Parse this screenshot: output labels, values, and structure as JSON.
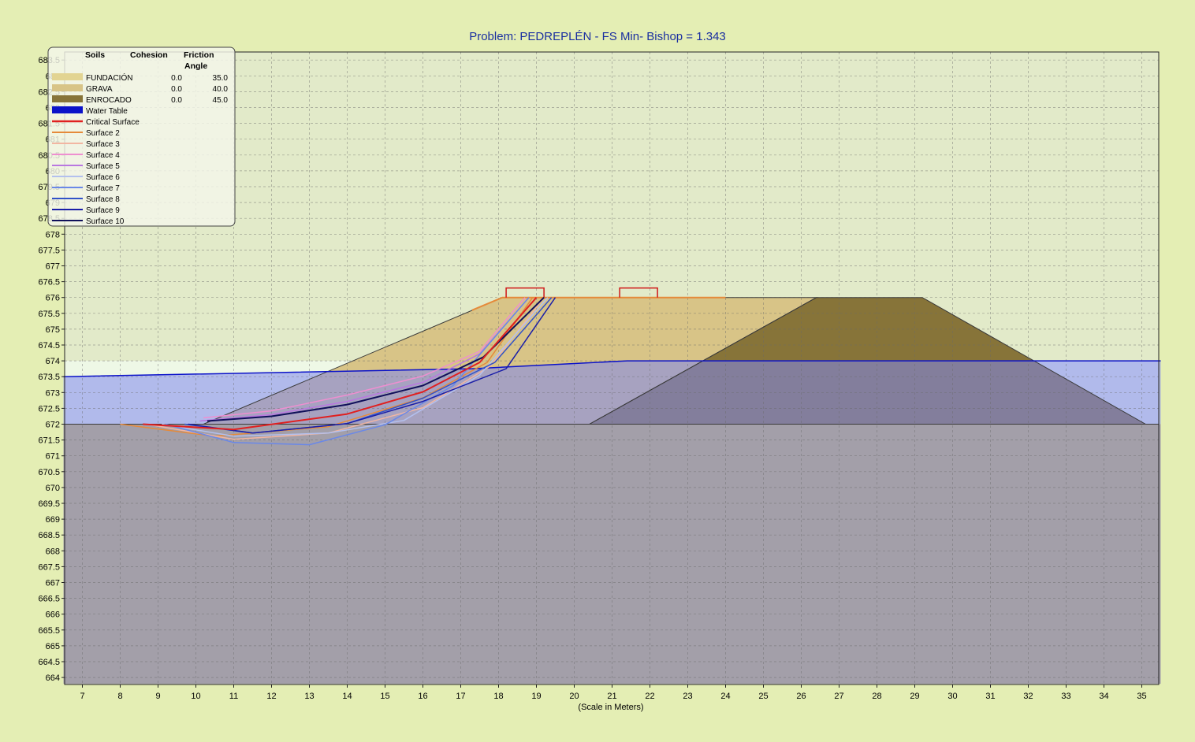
{
  "chart_data": {
    "type": "slope-stability-section",
    "title": "Problem: PEDREPLÉN - FS Min- Bishop = 1.343",
    "xlabel": "(Scale in Meters)",
    "ylabel": "",
    "xlim": [
      6.5,
      35.5
    ],
    "ylim": [
      663.8,
      683.8
    ],
    "x_ticks": [
      "7",
      "8",
      "9",
      "10",
      "11",
      "12",
      "13",
      "14",
      "15",
      "16",
      "17",
      "18",
      "19",
      "20",
      "21",
      "22",
      "23",
      "24",
      "25",
      "26",
      "27",
      "28",
      "29",
      "30",
      "31",
      "32",
      "33",
      "34",
      "35"
    ],
    "y_ticks": [
      "664",
      "664.5",
      "665",
      "665.5",
      "666",
      "666.5",
      "667",
      "667.5",
      "668",
      "668.5",
      "669",
      "669.5",
      "670",
      "670.5",
      "671",
      "671.5",
      "672",
      "672.5",
      "673",
      "673.5",
      "674",
      "674.5",
      "675",
      "675.5",
      "676",
      "676.5",
      "677",
      "677.5",
      "678",
      "678.5",
      "679",
      "679.5",
      "680",
      "680.5",
      "681",
      "681.5",
      "682",
      "682.5",
      "683",
      "683.5"
    ],
    "grid": true,
    "legend": {
      "placement": "top-left",
      "headers": [
        "Soils",
        "Cohesion",
        "Friction",
        "Angle"
      ],
      "soils": [
        {
          "name": "FUNDACIÓN",
          "cohesion": "0.0",
          "friction": "35.0",
          "color": "#e2d492"
        },
        {
          "name": "GRAVA",
          "cohesion": "0.0",
          "friction": "40.0",
          "color": "#d8c487"
        },
        {
          "name": "ENROCADO",
          "cohesion": "0.0",
          "friction": "45.0",
          "color": "#877439"
        }
      ],
      "lines": [
        {
          "name": "Water Table",
          "color": "#0b12c9"
        },
        {
          "name": "Critical Surface",
          "color": "#e02020"
        },
        {
          "name": "Surface 2",
          "color": "#e58a3a"
        },
        {
          "name": "Surface 3",
          "color": "#f2b6a2"
        },
        {
          "name": "Surface 4",
          "color": "#ee8fd0"
        },
        {
          "name": "Surface 5",
          "color": "#b978e0"
        },
        {
          "name": "Surface 6",
          "color": "#b3c0ee"
        },
        {
          "name": "Surface 7",
          "color": "#6a88e8"
        },
        {
          "name": "Surface 8",
          "color": "#3252c8"
        },
        {
          "name": "Surface 9",
          "color": "#1a1ea8"
        },
        {
          "name": "Surface 10",
          "color": "#10105a"
        }
      ]
    },
    "regions": [
      {
        "name": "foundation",
        "color": "#a39fa9",
        "points": [
          [
            6.5,
            672
          ],
          [
            35.5,
            672
          ],
          [
            35.5,
            663.8
          ],
          [
            6.5,
            663.8
          ]
        ]
      },
      {
        "name": "grava",
        "color": "#d8c487",
        "points": [
          [
            10.2,
            672
          ],
          [
            18.1,
            676
          ],
          [
            26.4,
            676
          ],
          [
            20.4,
            672
          ]
        ]
      },
      {
        "name": "enrocado",
        "color": "#877439",
        "points": [
          [
            20.4,
            672
          ],
          [
            26.4,
            676
          ],
          [
            29.2,
            676
          ],
          [
            35.1,
            672
          ]
        ]
      }
    ],
    "water": {
      "color": "#7f86ee",
      "line_color": "#0b12c9",
      "line": [
        [
          6.5,
          673.5
        ],
        [
          17.3,
          673.75
        ],
        [
          21.4,
          674
        ],
        [
          35.5,
          674
        ]
      ]
    },
    "loads": [
      [
        18.2,
        19.2,
        676,
        676.3
      ],
      [
        21.2,
        22.2,
        676,
        676.3
      ]
    ],
    "surfaces": [
      {
        "name": "Critical Surface",
        "color": "#e02020",
        "width": 2,
        "points": [
          [
            8.6,
            672
          ],
          [
            11,
            671.83
          ],
          [
            14,
            672.32
          ],
          [
            16,
            673.02
          ],
          [
            17.5,
            673.95
          ],
          [
            19,
            676
          ]
        ]
      },
      {
        "name": "Surface 2",
        "color": "#e58a3a",
        "width": 1.5,
        "points": [
          [
            8,
            672
          ],
          [
            10.5,
            671.62
          ],
          [
            13.5,
            671.92
          ],
          [
            16,
            672.83
          ],
          [
            17.7,
            673.95
          ],
          [
            18.9,
            676
          ]
        ]
      },
      {
        "name": "Surface 3",
        "color": "#f2b6a2",
        "width": 1.5,
        "points": [
          [
            8.7,
            672
          ],
          [
            11,
            671.52
          ],
          [
            13.5,
            671.72
          ],
          [
            16,
            672.52
          ],
          [
            17.8,
            673.85
          ],
          [
            19.2,
            676
          ]
        ]
      },
      {
        "name": "Surface 4",
        "color": "#ee8fd0",
        "width": 1.5,
        "points": [
          [
            10.2,
            672.2
          ],
          [
            12,
            672.42
          ],
          [
            14,
            672.92
          ],
          [
            16,
            673.52
          ],
          [
            17.5,
            674.3
          ],
          [
            18.7,
            676
          ]
        ]
      },
      {
        "name": "Surface 5",
        "color": "#b978e0",
        "width": 1.5,
        "points": [
          [
            10.1,
            672.1
          ],
          [
            12,
            672.3
          ],
          [
            14,
            672.72
          ],
          [
            16,
            673.32
          ],
          [
            17.5,
            674.22
          ],
          [
            18.8,
            676
          ]
        ]
      },
      {
        "name": "Surface 6",
        "color": "#b3c0ee",
        "width": 1.5,
        "points": [
          [
            9.1,
            672
          ],
          [
            11,
            671.62
          ],
          [
            13.5,
            671.72
          ],
          [
            15.5,
            672.12
          ],
          [
            17.5,
            673.55
          ],
          [
            19.3,
            676
          ]
        ]
      },
      {
        "name": "Surface 7",
        "color": "#6a88e8",
        "width": 1.5,
        "points": [
          [
            9.2,
            672
          ],
          [
            11,
            671.42
          ],
          [
            13,
            671.35
          ],
          [
            15,
            671.98
          ],
          [
            16.8,
            673.22
          ],
          [
            18.8,
            676
          ]
        ]
      },
      {
        "name": "Surface 8",
        "color": "#3252c8",
        "width": 1.5,
        "points": [
          [
            9.7,
            672
          ],
          [
            11.5,
            671.72
          ],
          [
            14,
            672.02
          ],
          [
            16,
            672.82
          ],
          [
            17.9,
            673.95
          ],
          [
            19.4,
            676
          ]
        ]
      },
      {
        "name": "Surface 9",
        "color": "#1a1ea8",
        "width": 1.5,
        "points": [
          [
            9.8,
            672
          ],
          [
            11.5,
            671.72
          ],
          [
            14,
            672.02
          ],
          [
            16,
            672.72
          ],
          [
            18.2,
            673.75
          ],
          [
            19.5,
            676
          ]
        ]
      },
      {
        "name": "Surface 10",
        "color": "#10105a",
        "width": 2,
        "points": [
          [
            10.3,
            672.1
          ],
          [
            12,
            672.25
          ],
          [
            14,
            672.62
          ],
          [
            16,
            673.22
          ],
          [
            17.6,
            674.12
          ],
          [
            19.2,
            676
          ]
        ]
      }
    ],
    "top_line": {
      "color": "#e58a3a",
      "points": [
        [
          17.3,
          675.6
        ],
        [
          18.1,
          676
        ],
        [
          24,
          676
        ]
      ]
    },
    "upper_panel_color": "#e2eac9",
    "lower_panel_color": "#eef8e6"
  }
}
